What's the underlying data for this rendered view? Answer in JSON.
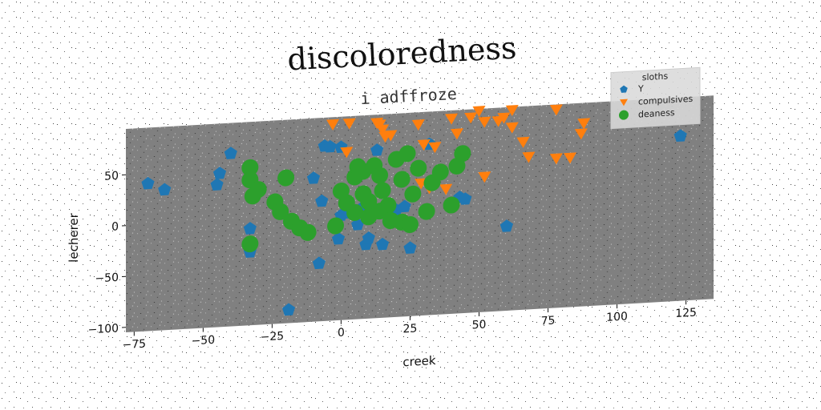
{
  "chart_data": {
    "type": "scatter",
    "title": "discoloredness",
    "subtitle": "i adffroze",
    "xlabel": "creek",
    "ylabel": "lecherer",
    "xlim": [
      -78,
      135
    ],
    "ylim": [
      -105,
      95
    ],
    "xticks": [
      -75,
      -50,
      -25,
      0,
      25,
      50,
      75,
      100,
      125
    ],
    "yticks": [
      -100,
      -50,
      0,
      50
    ],
    "grid": false,
    "background": "#808080",
    "legend": {
      "title": "sloths",
      "position": "top-right"
    },
    "series": [
      {
        "name": "Y",
        "color": "#1f77b4",
        "marker": "pentagon",
        "points": [
          [
            -70,
            40
          ],
          [
            -64,
            33
          ],
          [
            -40,
            65
          ],
          [
            -44,
            46
          ],
          [
            -45,
            35
          ],
          [
            -33,
            -10
          ],
          [
            -33,
            -33
          ],
          [
            -10,
            36
          ],
          [
            -7,
            13
          ],
          [
            -6,
            67
          ],
          [
            -4,
            66
          ],
          [
            0,
            -2
          ],
          [
            -1,
            -25
          ],
          [
            -8,
            -48
          ],
          [
            8,
            5
          ],
          [
            3,
            0
          ],
          [
            6,
            -12
          ],
          [
            9,
            -32
          ],
          [
            10,
            -26
          ],
          [
            15,
            -33
          ],
          [
            20,
            0
          ],
          [
            23,
            3
          ],
          [
            25,
            -38
          ],
          [
            28,
            40
          ],
          [
            32,
            63
          ],
          [
            43,
            9
          ],
          [
            45,
            7
          ],
          [
            60,
            -22
          ],
          [
            123,
            57
          ],
          [
            -19,
            -92
          ],
          [
            13,
            60
          ],
          [
            0,
            65
          ]
        ]
      },
      {
        "name": "compulsives",
        "color": "#ff7f0e",
        "marker": "triangle-down",
        "points": [
          [
            -3,
            88
          ],
          [
            3,
            88
          ],
          [
            13,
            87
          ],
          [
            14,
            85
          ],
          [
            15,
            80
          ],
          [
            16,
            73
          ],
          [
            18,
            74
          ],
          [
            28,
            83
          ],
          [
            30,
            63
          ],
          [
            34,
            60
          ],
          [
            40,
            87
          ],
          [
            42,
            72
          ],
          [
            47,
            87
          ],
          [
            50,
            93
          ],
          [
            52,
            82
          ],
          [
            57,
            82
          ],
          [
            59,
            85
          ],
          [
            62,
            92
          ],
          [
            62,
            75
          ],
          [
            66,
            60
          ],
          [
            68,
            45
          ],
          [
            78,
            90
          ],
          [
            78,
            42
          ],
          [
            83,
            42
          ],
          [
            88,
            75
          ],
          [
            87,
            65
          ],
          [
            52,
            28
          ],
          [
            32,
            20
          ],
          [
            38,
            18
          ],
          [
            2,
            60
          ],
          [
            29,
            25
          ]
        ]
      },
      {
        "name": "deaness",
        "color": "#2ca02c",
        "marker": "circle",
        "points": [
          [
            -33,
            50
          ],
          [
            -33,
            38
          ],
          [
            -30,
            28
          ],
          [
            -32,
            22
          ],
          [
            -24,
            15
          ],
          [
            -22,
            5
          ],
          [
            -18,
            -5
          ],
          [
            -15,
            -12
          ],
          [
            -12,
            -17
          ],
          [
            -33,
            -25
          ],
          [
            -20,
            38
          ],
          [
            -2,
            -12
          ],
          [
            0,
            22
          ],
          [
            2,
            10
          ],
          [
            5,
            35
          ],
          [
            6,
            45
          ],
          [
            8,
            40
          ],
          [
            8,
            18
          ],
          [
            10,
            10
          ],
          [
            12,
            45
          ],
          [
            14,
            35
          ],
          [
            15,
            20
          ],
          [
            17,
            5
          ],
          [
            18,
            -10
          ],
          [
            20,
            50
          ],
          [
            22,
            30
          ],
          [
            24,
            55
          ],
          [
            26,
            15
          ],
          [
            28,
            40
          ],
          [
            31,
            -3
          ],
          [
            33,
            25
          ],
          [
            36,
            35
          ],
          [
            40,
            2
          ],
          [
            42,
            40
          ],
          [
            44,
            52
          ],
          [
            5,
            0
          ],
          [
            10,
            -5
          ],
          [
            22,
            -12
          ],
          [
            25,
            -15
          ],
          [
            14,
            0
          ]
        ]
      }
    ]
  }
}
